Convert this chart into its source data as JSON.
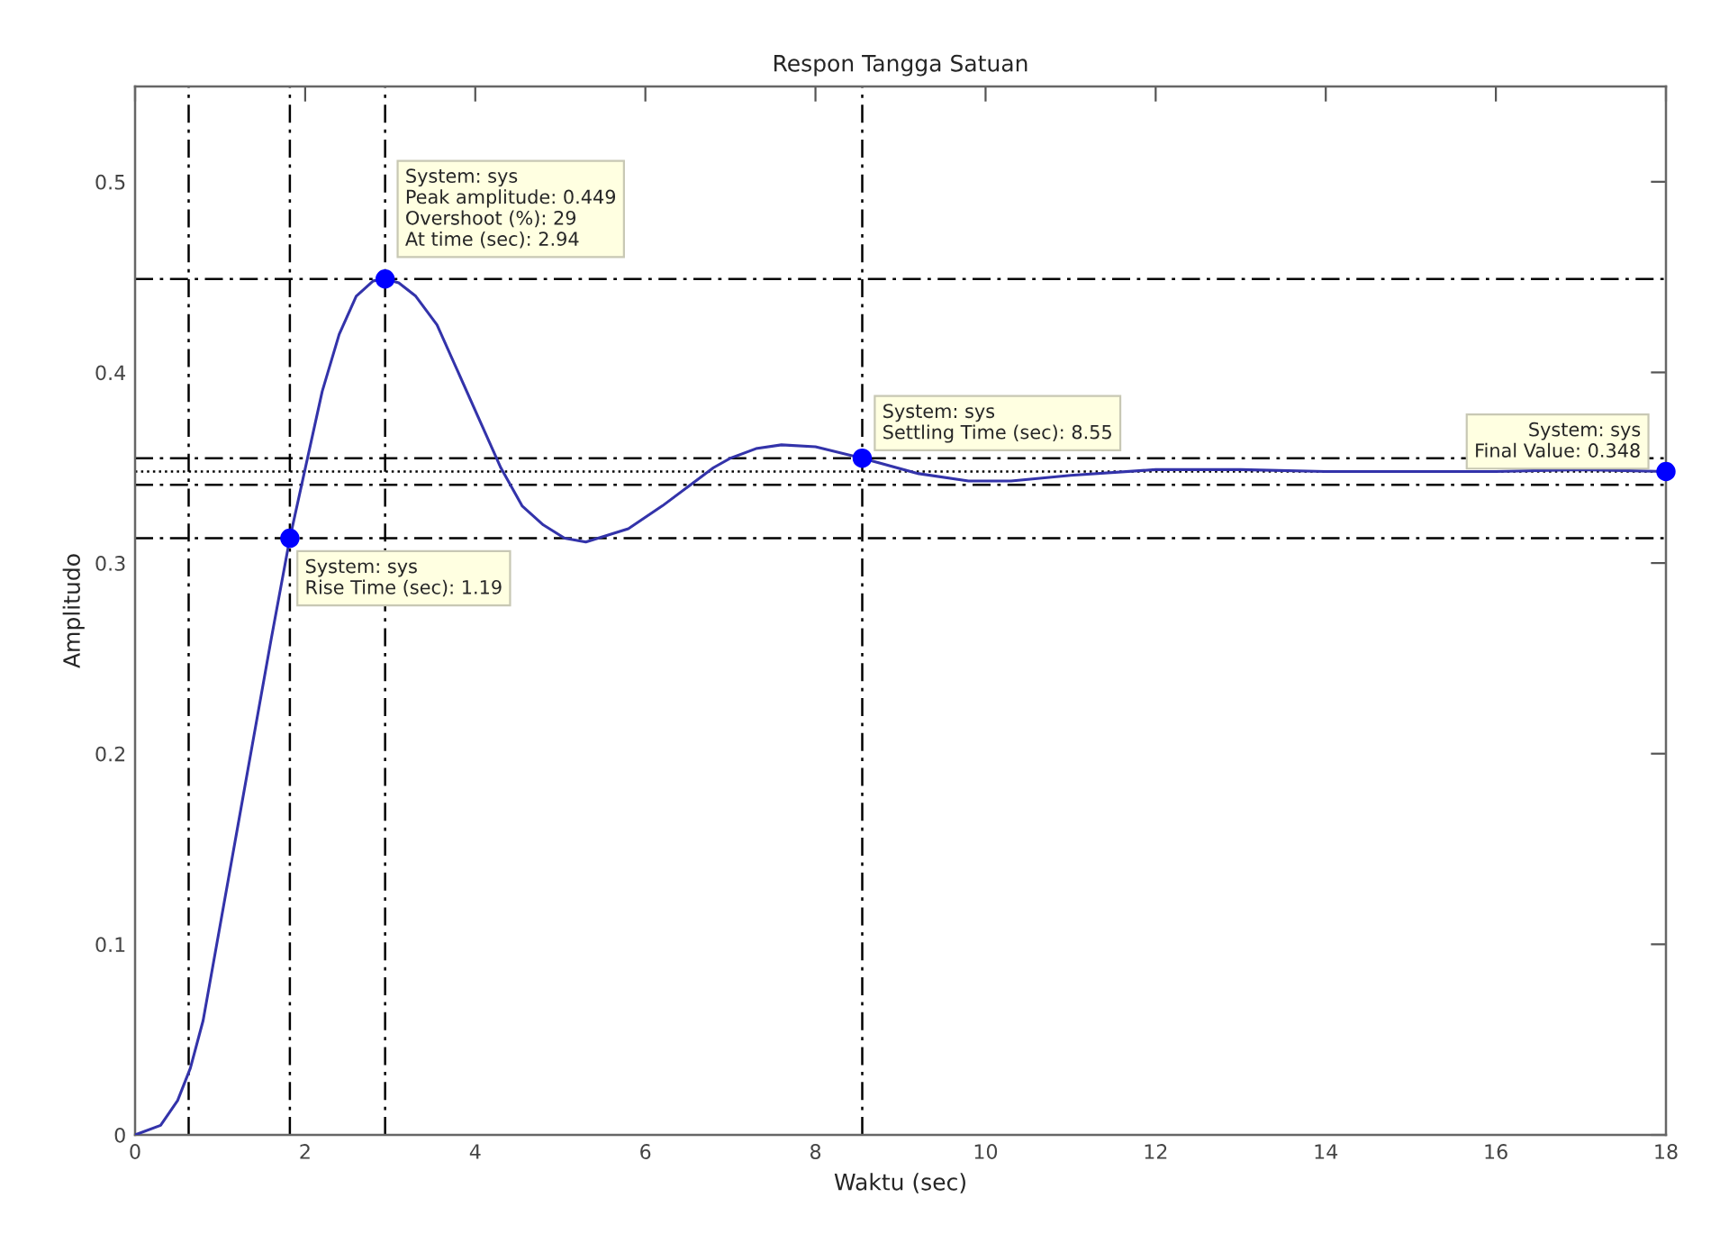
{
  "chart_data": {
    "type": "line",
    "title": "Respon Tangga Satuan",
    "xlabel": "Waktu (sec)",
    "ylabel": "Amplitudo",
    "xlim": [
      0,
      18
    ],
    "ylim": [
      0,
      0.55
    ],
    "xticks": [
      0,
      2,
      4,
      6,
      8,
      10,
      12,
      14,
      16,
      18
    ],
    "yticks": [
      0,
      0.1,
      0.2,
      0.3,
      0.4,
      0.5
    ],
    "grid": false,
    "legend": false,
    "series": [
      {
        "color": "#3333aa",
        "marker": "none",
        "line_style": "solid",
        "x": [
          0,
          0.3,
          0.5,
          0.65,
          0.8,
          1.0,
          1.2,
          1.4,
          1.6,
          1.82,
          2.2,
          2.4,
          2.6,
          2.8,
          2.94,
          3.1,
          3.3,
          3.55,
          3.8,
          4.05,
          4.3,
          4.55,
          4.8,
          5.05,
          5.3,
          5.8,
          6.2,
          6.5,
          6.8,
          7.0,
          7.3,
          7.6,
          8.0,
          8.55,
          9.2,
          9.8,
          10.3,
          11,
          12,
          13,
          14,
          15,
          16,
          17,
          18
        ],
        "values": [
          0,
          0.005,
          0.018,
          0.035,
          0.06,
          0.11,
          0.16,
          0.21,
          0.26,
          0.313,
          0.39,
          0.42,
          0.44,
          0.448,
          0.449,
          0.447,
          0.44,
          0.425,
          0.4,
          0.375,
          0.35,
          0.33,
          0.32,
          0.313,
          0.311,
          0.318,
          0.33,
          0.34,
          0.35,
          0.355,
          0.36,
          0.362,
          0.361,
          0.355,
          0.347,
          0.343,
          0.343,
          0.346,
          0.349,
          0.349,
          0.348,
          0.348,
          0.348,
          0.349,
          0.348
        ]
      },
      {
        "type": "scatter",
        "color": "#0000ff",
        "marker": "circle",
        "x": [
          1.82,
          2.94,
          8.55,
          18
        ],
        "values": [
          0.313,
          0.449,
          0.355,
          0.348
        ]
      }
    ],
    "ref_lines": [
      {
        "axis": "x",
        "value": 0.63,
        "color": "#000000",
        "line_style": "dashed"
      },
      {
        "axis": "x",
        "value": 1.82,
        "color": "#000000",
        "line_style": "dashed"
      },
      {
        "axis": "x",
        "value": 2.94,
        "color": "#000000",
        "line_style": "dashed"
      },
      {
        "axis": "x",
        "value": 8.55,
        "color": "#000000",
        "line_style": "dashed"
      },
      {
        "axis": "y",
        "value": 0.313,
        "color": "#000000",
        "line_style": "dashed"
      },
      {
        "axis": "y",
        "value": 0.449,
        "color": "#000000",
        "line_style": "dashed"
      },
      {
        "axis": "y",
        "value": 0.355,
        "color": "#000000",
        "line_style": "dashed"
      },
      {
        "axis": "y",
        "value": 0.341,
        "color": "#000000",
        "line_style": "dashed"
      },
      {
        "axis": "y",
        "value": 0.348,
        "color": "#000000",
        "line_style": "dotted"
      }
    ],
    "annotations": [
      {
        "text": "System: sys\nPeak amplitude: 0.449\nOvershoot (%): 29\nAt time (sec): 2.94",
        "x": 2.94,
        "y": 0.449
      },
      {
        "text": "System: sys\nRise Time (sec): 1.19",
        "x": 1.82,
        "y": 0.313
      },
      {
        "text": "System: sys\nSettling Time (sec): 8.55",
        "x": 8.55,
        "y": 0.355
      },
      {
        "text": "System: sys\nFinal Value: 0.348",
        "x": 18,
        "y": 0.348
      }
    ]
  }
}
